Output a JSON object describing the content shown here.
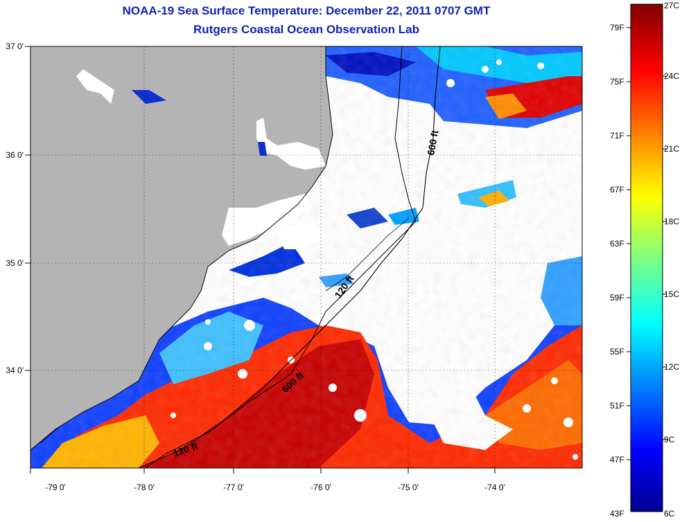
{
  "title": {
    "line1": "NOAA-19 Sea Surface Temperature:  December 22, 2011 0707 GMT",
    "line2": "Rutgers Coastal Ocean Observation Lab"
  },
  "axes": {
    "lon_labels": [
      "-79 0'",
      "-78 0'",
      "-77 0'",
      "-76 0'",
      "-75 0'",
      "-74 0'"
    ],
    "lat_labels": [
      "37 0'",
      "36 0'",
      "35 0'",
      "34 0'"
    ]
  },
  "contours": {
    "labels": [
      "600 ft",
      "120 ft",
      "600 ft",
      "120 ft"
    ]
  },
  "colorbar": {
    "fahrenheit": [
      "79F",
      "75F",
      "71F",
      "67F",
      "63F",
      "59F",
      "55F",
      "51F",
      "47F",
      "43F"
    ],
    "celsius": [
      "27C",
      "24C",
      "21C",
      "18C",
      "15C",
      "12C",
      "9C",
      "6C"
    ]
  },
  "colors": {
    "land": "#b4b4b4",
    "title": "#1020b8",
    "cloud": "#ffffff"
  }
}
